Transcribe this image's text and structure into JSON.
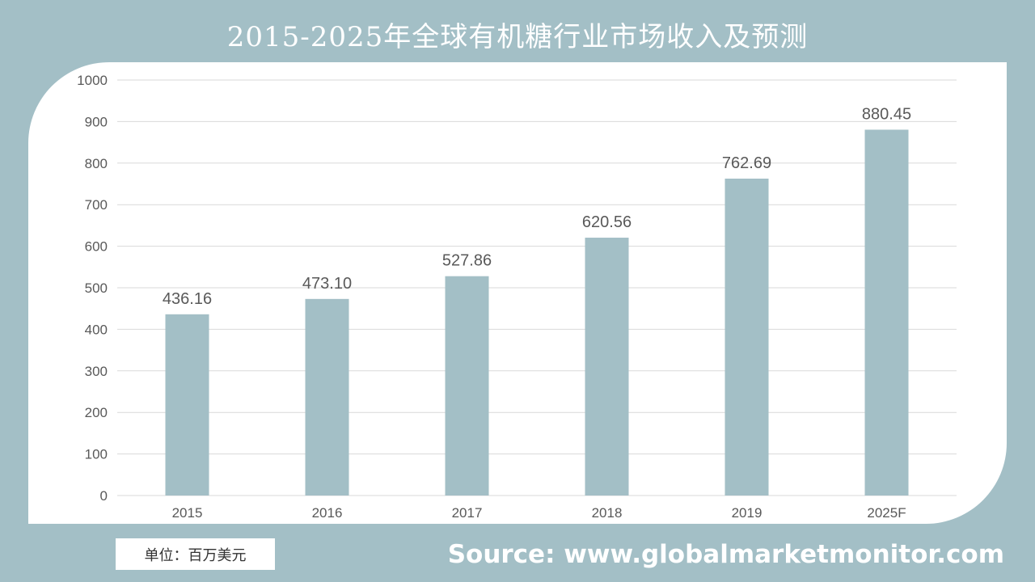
{
  "header": {
    "title": "2015-2025年全球有机糖行业市场收入及预测"
  },
  "footer": {
    "unit": "单位：百万美元",
    "source": "Source: www.globalmarketmonitor.com"
  },
  "colors": {
    "background": "#a3bfc6",
    "bar": "#a3bfc6",
    "panel": "#ffffff"
  },
  "chart_data": {
    "type": "bar",
    "title": "2015-2025年全球有机糖行业市场收入及预测",
    "categories": [
      "2015",
      "2016",
      "2017",
      "2018",
      "2019",
      "2025F"
    ],
    "values": [
      436.16,
      473.1,
      527.86,
      620.56,
      762.69,
      880.45
    ],
    "value_labels": [
      "436.16",
      "473.10",
      "527.86",
      "620.56",
      "762.69",
      "880.45"
    ],
    "ylim": [
      0,
      1000
    ],
    "yticks": [
      0,
      100,
      200,
      300,
      400,
      500,
      600,
      700,
      800,
      900,
      1000
    ],
    "grid": true,
    "legend": "none"
  }
}
